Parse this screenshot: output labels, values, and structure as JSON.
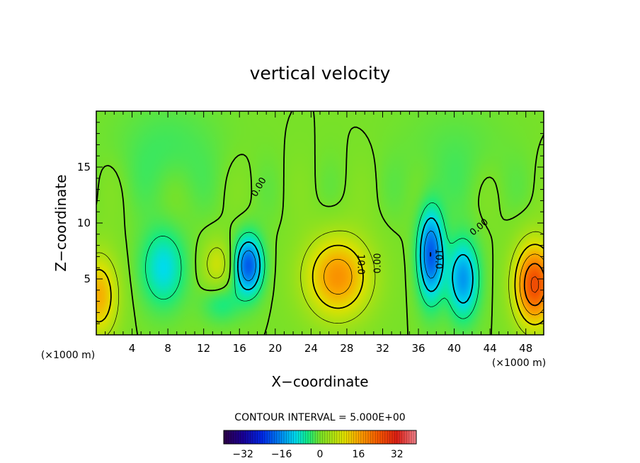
{
  "chart_data": {
    "type": "heatmap",
    "title": "vertical velocity",
    "xlabel": "X−coordinate",
    "ylabel": "Z−coordinate",
    "x_unit_left": "(×1000 m)",
    "x_unit_right": "(×1000 m)",
    "xlim": [
      0,
      50
    ],
    "ylim": [
      0,
      20
    ],
    "xticks": [
      4,
      8,
      12,
      16,
      20,
      24,
      28,
      32,
      36,
      40,
      44,
      48
    ],
    "xtick_labels": [
      "4",
      "8",
      "12",
      "16",
      "20",
      "24",
      "28",
      "32",
      "36",
      "40",
      "44",
      "48"
    ],
    "yticks": [
      5,
      10,
      15
    ],
    "ytick_labels": [
      "5",
      "10",
      "15"
    ],
    "contour_interval_text": "CONTOUR INTERVAL = 5.000E+00",
    "contour_labels": [
      {
        "text": "10.0",
        "x": 29.5,
        "z": 6.3,
        "rot": 90
      },
      {
        "text": "0.00",
        "x": 31.5,
        "z": 6.4,
        "rot": -90
      },
      {
        "text": "0.00",
        "x": 18.2,
        "z": 13.2,
        "rot": -60
      },
      {
        "text": "0.00",
        "x": 42.8,
        "z": 9.6,
        "rot": -40
      },
      {
        "text": "10.0",
        "x": 38.2,
        "z": 6.8,
        "rot": 90
      }
    ],
    "features": [
      {
        "kind": "updraft",
        "x": 27,
        "z": 5.2,
        "peak": 18,
        "sx": 2.6,
        "sz": 2.6
      },
      {
        "kind": "updraft",
        "x": 49,
        "z": 4.5,
        "peak": 26,
        "sx": 1.6,
        "sz": 2.6
      },
      {
        "kind": "updraft",
        "x": 0.3,
        "z": 3.5,
        "peak": 15,
        "sx": 1.5,
        "sz": 2.6
      },
      {
        "kind": "updraft",
        "x": 13.5,
        "z": 6.3,
        "peak": 8,
        "sx": 1.2,
        "sz": 1.6
      },
      {
        "kind": "downdraft",
        "x": 17,
        "z": 6.2,
        "peak": -20,
        "sx": 1.1,
        "sz": 1.8
      },
      {
        "kind": "downdraft",
        "x": 7.5,
        "z": 6,
        "peak": -10,
        "sx": 1.7,
        "sz": 2.4
      },
      {
        "kind": "downdraft",
        "x": 37.4,
        "z": 7.2,
        "peak": -20,
        "sx": 1,
        "sz": 2.8
      },
      {
        "kind": "downdraft",
        "x": 41,
        "z": 5,
        "peak": -15,
        "sx": 1.2,
        "sz": 2.4
      },
      {
        "kind": "downdraft",
        "x": 14,
        "z": 2.8,
        "peak": -5,
        "sx": 1.5,
        "sz": 1.2
      },
      {
        "kind": "downdraft",
        "x": 8,
        "z": 16.5,
        "peak": -3,
        "sx": 4,
        "sz": 3
      },
      {
        "kind": "downdraft",
        "x": 40,
        "z": 16,
        "peak": -2,
        "sx": 4,
        "sz": 3
      }
    ],
    "colorbar": {
      "range": [
        -40,
        40
      ],
      "ticks": [
        -32,
        -16,
        0,
        16,
        32
      ],
      "tick_labels": [
        "−32",
        "−16",
        "0",
        "16",
        "32"
      ]
    },
    "grid": false,
    "legend": "none"
  }
}
